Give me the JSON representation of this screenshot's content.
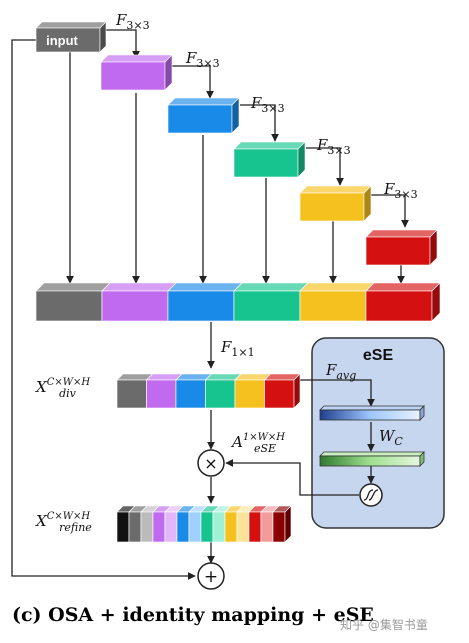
{
  "input_block": {
    "label": "input",
    "color": "#6b6b6b"
  },
  "conv_op_label": "F3×3",
  "conv_blocks": [
    {
      "color": "#c06af0"
    },
    {
      "color": "#1a8ae8"
    },
    {
      "color": "#17c48f"
    },
    {
      "color": "#f5c11e"
    },
    {
      "color": "#d51010"
    }
  ],
  "concat_label": "F1×1",
  "x_div_label": {
    "base": "X",
    "sup": "C×W×H",
    "sub": "div"
  },
  "x_refine_label": {
    "base": "X",
    "sup": "C×W×H",
    "sub": "refine"
  },
  "attention_label": {
    "base": "A",
    "sup": "1×W×H",
    "sub": "eSE"
  },
  "ese": {
    "title": "eSE",
    "avg_label": {
      "base": "F",
      "sub": "avg"
    },
    "wc_label": {
      "base": "W",
      "sub": "C"
    },
    "bg_color": "#c7d6ef"
  },
  "multiply_symbol": "×",
  "add_symbol": "+",
  "caption": "(c) OSA + identity mapping + eSE",
  "watermark": "知乎 @集智书童"
}
